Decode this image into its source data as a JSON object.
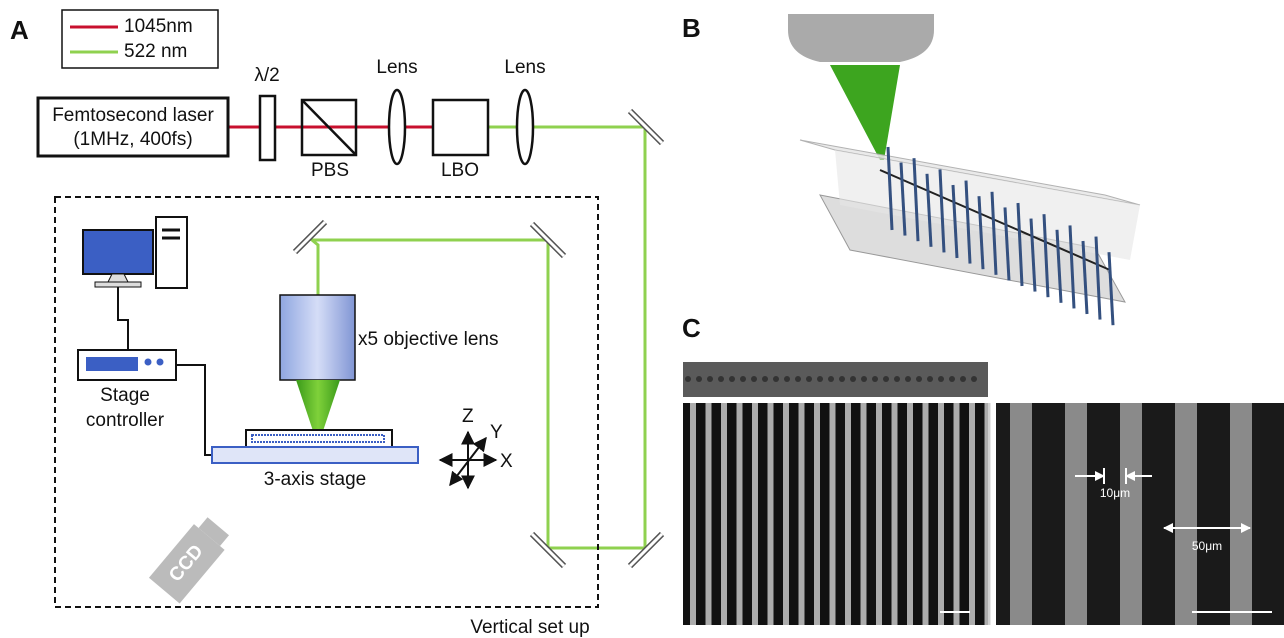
{
  "panels": {
    "a": "A",
    "b": "B",
    "c": "C"
  },
  "legend": {
    "red": "1045nm",
    "green": "522 nm"
  },
  "optics": {
    "waveplate": "λ/2",
    "lens1": "Lens",
    "lens2": "Lens",
    "pbs": "PBS",
    "lbo": "LBO"
  },
  "laser": {
    "line1": "Femtosecond laser",
    "line2": "(1MHz, 400fs)"
  },
  "setup": {
    "objective": "x5 objective lens",
    "controller1": "Stage",
    "controller2": "controller",
    "stage": "3-axis stage",
    "ccd": "CCD",
    "frame": "Vertical set up"
  },
  "axes": {
    "z": "Z",
    "y": "Y",
    "x": "X"
  },
  "sem": {
    "width": "10μm",
    "pitch": "50μm"
  }
}
